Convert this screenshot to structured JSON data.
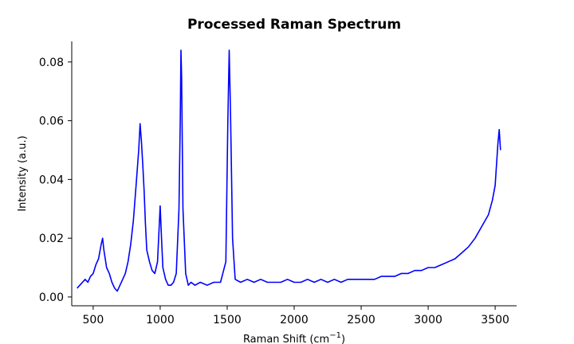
{
  "chart_data": {
    "type": "line",
    "title": "Processed Raman Spectrum",
    "xlabel": "Raman Shift (cm",
    "xlabel_superscript": "−1",
    "xlabel_suffix": ")",
    "ylabel": "Intensity (a.u.)",
    "xlim": [
      340,
      3660
    ],
    "ylim": [
      -0.003,
      0.087
    ],
    "xticks": [
      500,
      1000,
      1500,
      2000,
      2500,
      3000,
      3500
    ],
    "xtick_labels": [
      "500",
      "1000",
      "1500",
      "2000",
      "2500",
      "3000",
      "3500"
    ],
    "yticks": [
      0.0,
      0.02,
      0.04,
      0.06,
      0.08
    ],
    "ytick_labels": [
      "0.00",
      "0.02",
      "0.04",
      "0.06",
      "0.08"
    ],
    "grid": false,
    "series": [
      {
        "color": "#0000ff",
        "x": [
          380,
          400,
          420,
          440,
          460,
          480,
          500,
          520,
          540,
          560,
          570,
          580,
          600,
          620,
          640,
          660,
          680,
          700,
          720,
          740,
          760,
          780,
          800,
          820,
          840,
          850,
          860,
          870,
          880,
          890,
          900,
          920,
          940,
          960,
          980,
          1000,
          1010,
          1020,
          1040,
          1060,
          1080,
          1100,
          1120,
          1140,
          1150,
          1155,
          1160,
          1170,
          1190,
          1210,
          1230,
          1260,
          1300,
          1350,
          1400,
          1450,
          1490,
          1505,
          1515,
          1525,
          1540,
          1560,
          1600,
          1650,
          1700,
          1750,
          1800,
          1850,
          1900,
          1950,
          2000,
          2050,
          2100,
          2150,
          2200,
          2250,
          2300,
          2350,
          2400,
          2450,
          2500,
          2550,
          2600,
          2650,
          2700,
          2750,
          2800,
          2850,
          2900,
          2950,
          3000,
          3050,
          3100,
          3150,
          3200,
          3250,
          3300,
          3350,
          3400,
          3450,
          3480,
          3500,
          3510,
          3520,
          3530,
          3540
        ],
        "y": [
          0.003,
          0.004,
          0.005,
          0.006,
          0.005,
          0.007,
          0.008,
          0.011,
          0.013,
          0.018,
          0.02,
          0.016,
          0.01,
          0.008,
          0.005,
          0.003,
          0.002,
          0.004,
          0.006,
          0.008,
          0.012,
          0.018,
          0.026,
          0.038,
          0.05,
          0.059,
          0.053,
          0.045,
          0.036,
          0.025,
          0.016,
          0.012,
          0.009,
          0.008,
          0.012,
          0.031,
          0.02,
          0.01,
          0.006,
          0.004,
          0.004,
          0.005,
          0.008,
          0.03,
          0.06,
          0.084,
          0.075,
          0.03,
          0.008,
          0.004,
          0.005,
          0.004,
          0.005,
          0.004,
          0.005,
          0.005,
          0.012,
          0.06,
          0.084,
          0.062,
          0.02,
          0.006,
          0.005,
          0.006,
          0.005,
          0.006,
          0.005,
          0.005,
          0.005,
          0.006,
          0.005,
          0.005,
          0.006,
          0.005,
          0.006,
          0.005,
          0.006,
          0.005,
          0.006,
          0.006,
          0.006,
          0.006,
          0.006,
          0.007,
          0.007,
          0.007,
          0.008,
          0.008,
          0.009,
          0.009,
          0.01,
          0.01,
          0.011,
          0.012,
          0.013,
          0.015,
          0.017,
          0.02,
          0.024,
          0.028,
          0.033,
          0.038,
          0.045,
          0.052,
          0.057,
          0.05
        ]
      }
    ]
  }
}
